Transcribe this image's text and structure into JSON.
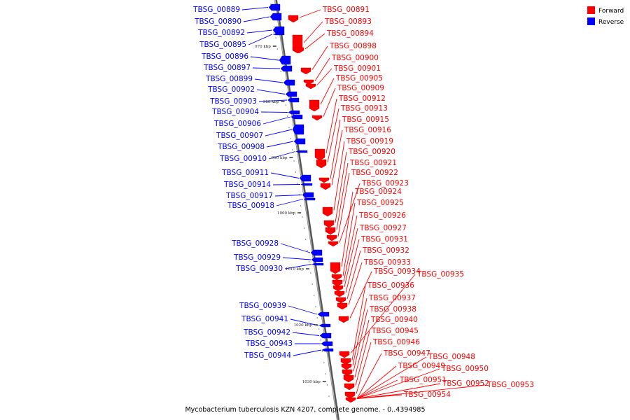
{
  "colors": {
    "forward": "#ff0000",
    "reverse": "#0000ff",
    "backbone": "#8a8a8a"
  },
  "legend": {
    "forward_label": "Forward",
    "reverse_label": "Reverse"
  },
  "caption": "Mycobacterium tuberculosis KZN 4207, complete genome. - 0..4394985",
  "scale_ticks": [
    "970 kbp",
    "980 kbp",
    "990 kbp",
    "1000 kbp",
    "1010 kbp",
    "1020 kbp",
    "1030 kbp"
  ],
  "reverse_genes": [
    "TBSG_00889",
    "TBSG_00890",
    "TBSG_00892",
    "TBSG_00895",
    "TBSG_00896",
    "TBSG_00897",
    "TBSG_00899",
    "TBSG_00902",
    "TBSG_00903",
    "TBSG_00904",
    "TBSG_00906",
    "TBSG_00907",
    "TBSG_00908",
    "TBSG_00910",
    "TBSG_00911",
    "TBSG_00914",
    "TBSG_00917",
    "TBSG_00918",
    "TBSG_00928",
    "TBSG_00929",
    "TBSG_00930",
    "TBSG_00939",
    "TBSG_00941",
    "TBSG_00942",
    "TBSG_00943",
    "TBSG_00944"
  ],
  "forward_genes": [
    "TBSG_00891",
    "TBSG_00893",
    "TBSG_00894",
    "TBSG_00898",
    "TBSG_00900",
    "TBSG_00901",
    "TBSG_00905",
    "TBSG_00909",
    "TBSG_00912",
    "TBSG_00913",
    "TBSG_00915",
    "TBSG_00916",
    "TBSG_00919",
    "TBSG_00920",
    "TBSG_00921",
    "TBSG_00922",
    "TBSG_00923",
    "TBSG_00924",
    "TBSG_00925",
    "TBSG_00926",
    "TBSG_00927",
    "TBSG_00931",
    "TBSG_00932",
    "TBSG_00933",
    "TBSG_00934",
    "TBSG_00935",
    "TBSG_00936",
    "TBSG_00937",
    "TBSG_00938",
    "TBSG_00940",
    "TBSG_00945",
    "TBSG_00946",
    "TBSG_00947",
    "TBSG_00948",
    "TBSG_00949",
    "TBSG_00950",
    "TBSG_00951",
    "TBSG_00952",
    "TBSG_00953",
    "TBSG_00954"
  ]
}
